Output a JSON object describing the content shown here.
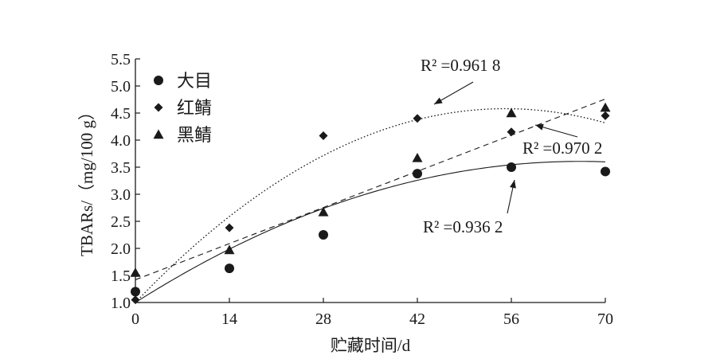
{
  "chart_data": {
    "type": "scatter",
    "xlabel": "贮藏时间/d",
    "ylabel": "TBARs/（mg/100 g）",
    "xlim": [
      0,
      70
    ],
    "ylim": [
      1.0,
      5.5
    ],
    "xticks": [
      0,
      14,
      28,
      42,
      56,
      70
    ],
    "yticks": [
      1.0,
      1.5,
      2.0,
      2.5,
      3.0,
      3.5,
      4.0,
      4.5,
      5.0,
      5.5
    ],
    "x": [
      0,
      14,
      28,
      42,
      56,
      70
    ],
    "series": [
      {
        "name": "大目",
        "marker": "circle",
        "values": [
          1.2,
          1.63,
          2.25,
          3.38,
          3.5,
          3.42
        ],
        "trendline": "polynomial",
        "line_style": "solid",
        "trend_coeffs": [
          1.0,
          0.0787,
          -0.000594
        ],
        "r2_label": "R² =0.936 2"
      },
      {
        "name": "红鲭",
        "marker": "diamond",
        "values": [
          1.05,
          2.38,
          4.08,
          4.4,
          4.15,
          4.45
        ],
        "trendline": "polynomial",
        "line_style": "dotted",
        "trend_coeffs": [
          1.0,
          0.13,
          -0.00118
        ],
        "r2_label": "R² =0.961 8"
      },
      {
        "name": "黑鲭",
        "marker": "triangle",
        "values": [
          1.55,
          1.97,
          2.67,
          3.67,
          4.5,
          4.6
        ],
        "trendline": "linear",
        "line_style": "dashed",
        "trend_coeffs": [
          1.42,
          0.0477
        ],
        "r2_label": "R² =0.970 2"
      }
    ],
    "legend_position": "top-left",
    "grid": false
  }
}
